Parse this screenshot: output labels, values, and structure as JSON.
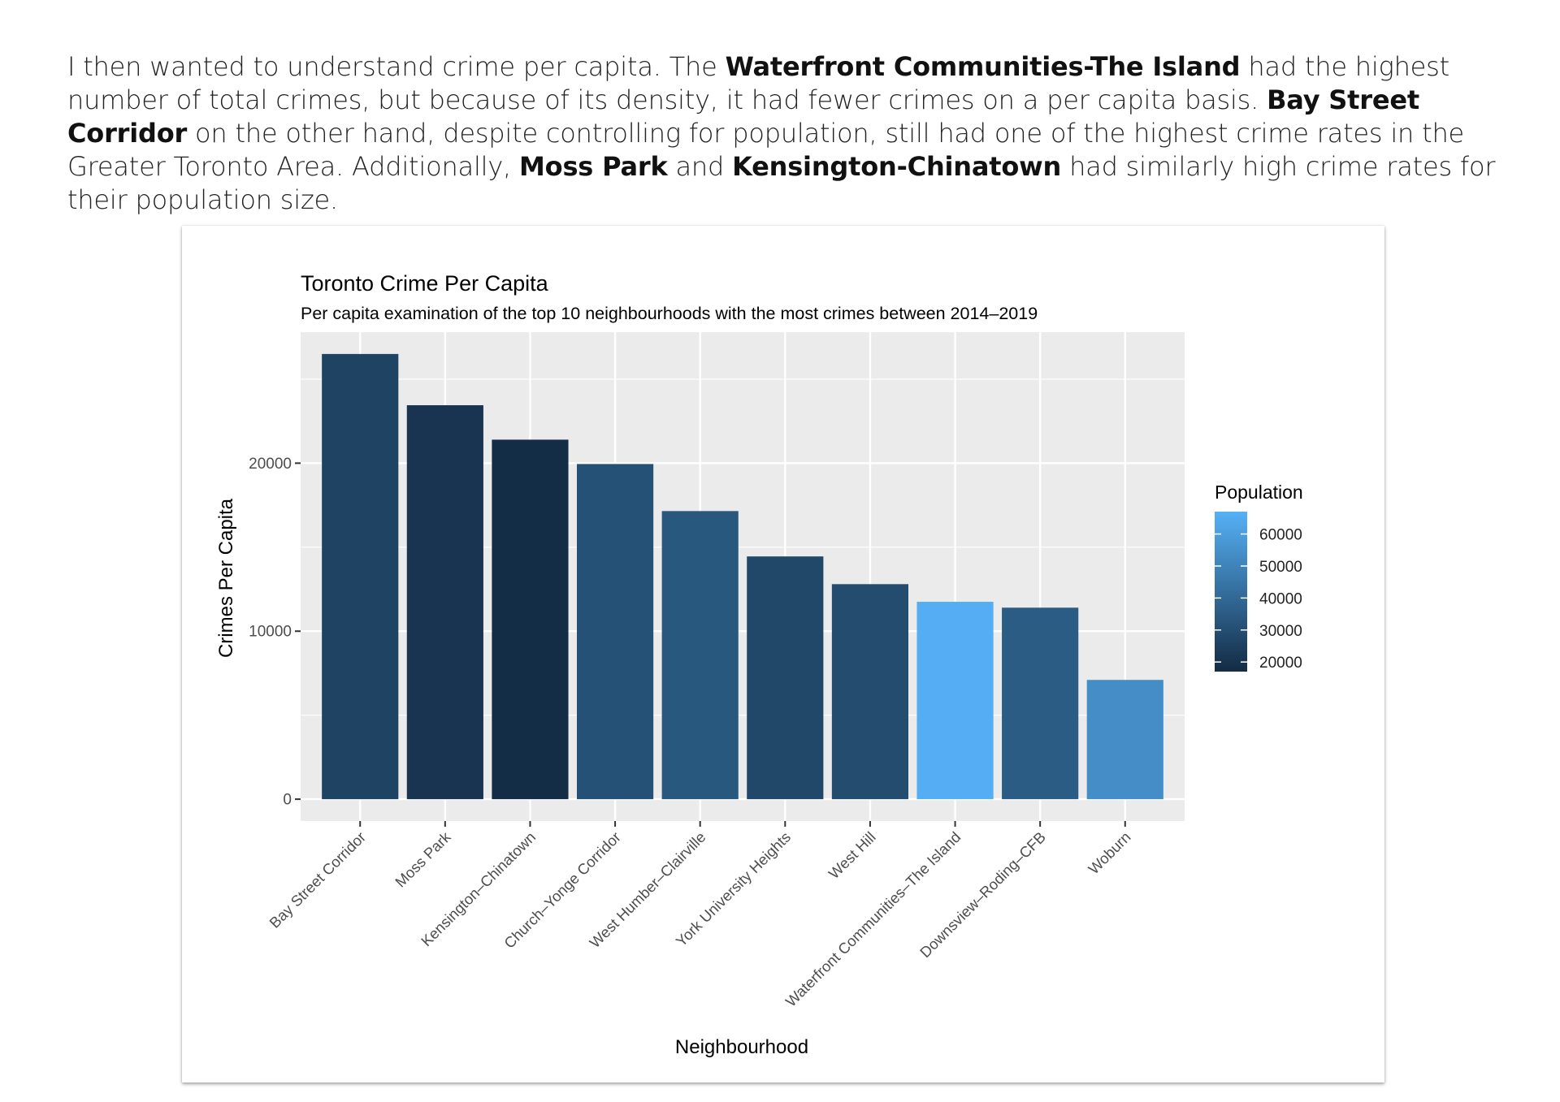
{
  "intro": {
    "t1": "I then wanted to understand crime per capita. The ",
    "b1": "Waterfront Communities-The Island",
    "t2": " had the highest number of total crimes, but because of its density, it had fewer crimes on a per capita basis. ",
    "b2": "Bay Street Corridor",
    "t3": " on the other hand, despite controlling for population, still had one of the highest crime rates in the Greater Toronto Area. Additionally, ",
    "b3": "Moss Park",
    "t4": " and ",
    "b4": "Kensington-Chinatown",
    "t5": " had similarly high crime rates for their population size."
  },
  "chart_data": {
    "type": "bar",
    "title": "Toronto Crime Per Capita",
    "subtitle": "Per capita examination of the top 10 neighbourhoods with the most crimes between 2014–2019",
    "xlabel": "Neighbourhood",
    "ylabel": "Crimes Per Capita",
    "ylim": [
      -1300,
      27800
    ],
    "yticks": [
      0,
      10000,
      20000
    ],
    "ytick_labels": [
      "0",
      "10000",
      "20000"
    ],
    "grid": true,
    "categories": [
      "Bay Street Corridor",
      "Moss Park",
      "Kensington–Chinatown",
      "Church–Yonge Corridor",
      "West Humber–Clairville",
      "York University Heights",
      "West Hill",
      "Waterfront Communities–The Island",
      "Downsview–Roding–CFB",
      "Woburn"
    ],
    "values": [
      26500,
      23450,
      21400,
      19950,
      17150,
      14450,
      12800,
      11750,
      11400,
      7100
    ],
    "population": [
      25800,
      20500,
      17900,
      31200,
      33700,
      27600,
      29200,
      65900,
      35100,
      53700
    ],
    "legend": {
      "title": "Population",
      "placement": "right",
      "ticks": [
        60000,
        50000,
        40000,
        30000,
        20000
      ],
      "tick_labels": [
        "60000",
        "50000",
        "40000",
        "30000",
        "20000"
      ],
      "range": [
        17000,
        67000
      ],
      "color_low": "#132B43",
      "color_high": "#56B1F7"
    },
    "colors": {
      "panel": "#EBEBEB",
      "grid": "#FFFFFF",
      "axis_text": "#4D4D4D",
      "tick": "#333333"
    }
  }
}
